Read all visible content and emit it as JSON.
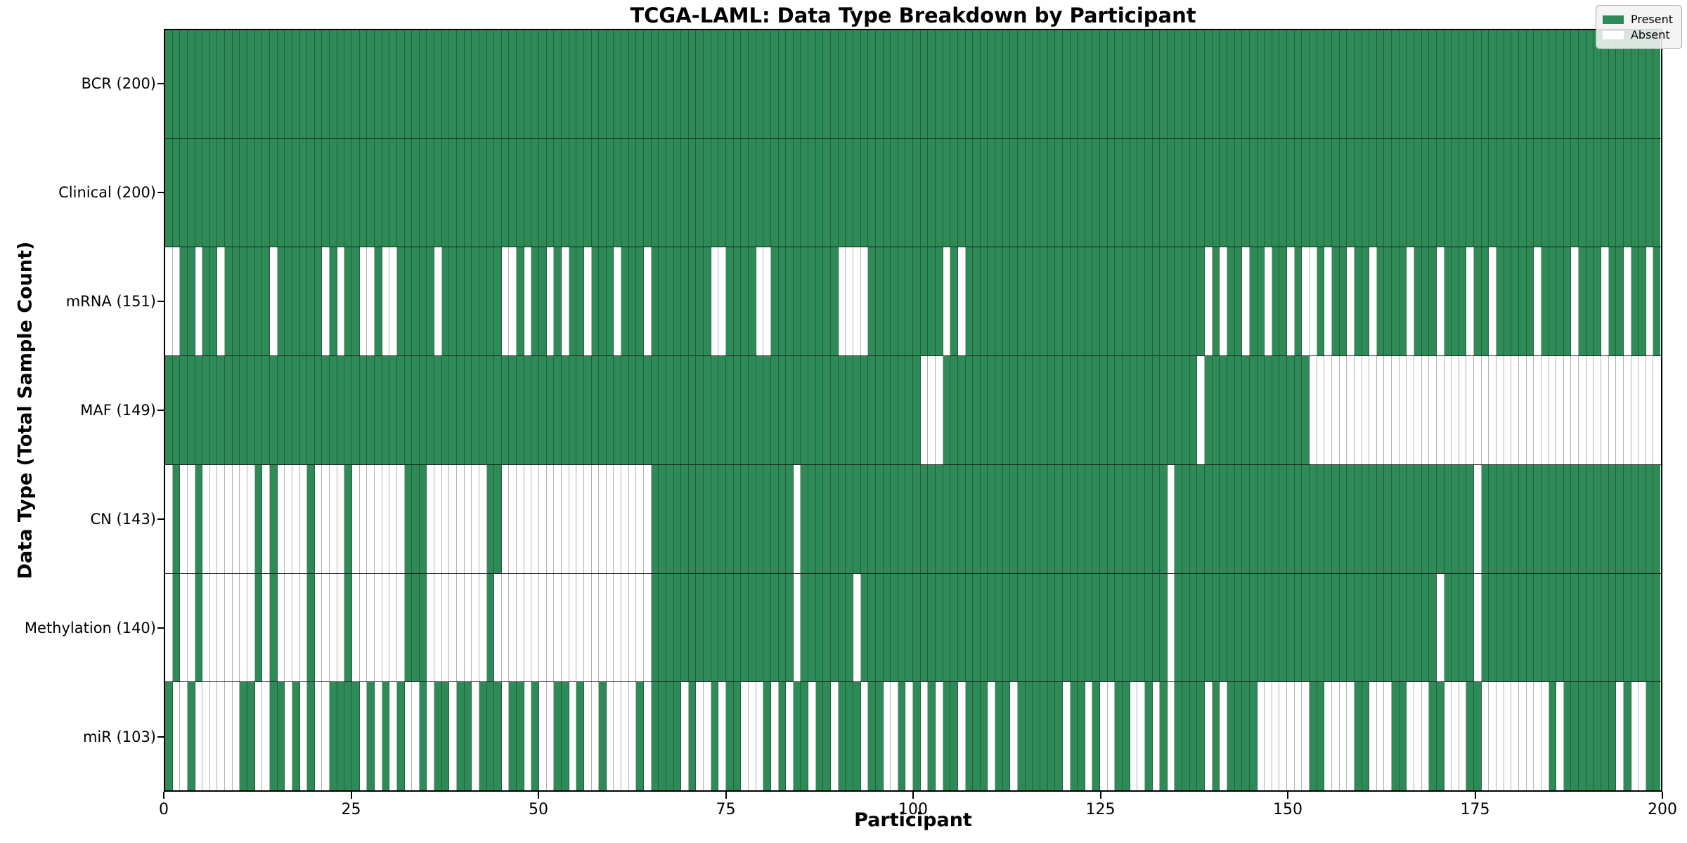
{
  "figure": {
    "title": "TCGA-LAML: Data Type Breakdown by Participant",
    "x_axis_label": "Participant",
    "y_axis_label": "Data Type (Total Sample Count)",
    "legend": {
      "present_label": "Present",
      "absent_label": "Absent"
    },
    "colors": {
      "present": "#2e8b57",
      "absent": "#ffffff",
      "cell_edge": "rgba(0,0,0,0.30)",
      "row_separator": "#1c1c1c",
      "frame": "#000000",
      "legend_bg": "rgba(242,243,242,0.88)"
    }
  },
  "chart_data": {
    "type": "heatmap",
    "title": "TCGA-LAML: Data Type Breakdown by Participant",
    "xlabel": "Participant",
    "ylabel": "Data Type (Total Sample Count)",
    "legend": [
      "Present",
      "Absent"
    ],
    "legend_position": "upper right",
    "grid": false,
    "n_participants": 200,
    "x_range": [
      0,
      200
    ],
    "x_ticks": [
      0,
      25,
      50,
      75,
      100,
      125,
      150,
      175,
      200
    ],
    "value_encoding": {
      "present": 1,
      "absent": 0
    },
    "rows": [
      {
        "name": "BCR",
        "label": "BCR (200)",
        "present_count": 200,
        "absent_count": 0,
        "absent_singles": [],
        "absent_ranges": []
      },
      {
        "name": "Clinical",
        "label": "Clinical (200)",
        "present_count": 200,
        "absent_count": 0,
        "absent_singles": [],
        "absent_ranges": []
      },
      {
        "name": "mRNA",
        "label": "mRNA (151)",
        "present_count": 151,
        "absent_count": 49,
        "absent_singles": [
          0,
          1,
          4,
          7,
          14,
          21,
          23,
          26,
          27,
          29,
          30,
          36,
          45,
          46,
          48,
          51,
          53,
          56,
          60,
          64,
          73,
          74,
          79,
          80,
          104,
          106,
          139,
          141,
          144,
          147,
          150,
          152,
          153,
          155,
          158,
          161,
          166,
          170,
          174,
          177,
          183,
          188,
          192,
          195,
          198
        ],
        "absent_ranges": [
          [
            90,
            93
          ]
        ]
      },
      {
        "name": "MAF",
        "label": "MAF (149)",
        "present_count": 149,
        "absent_count": 51,
        "absent_singles": [
          101,
          102,
          103,
          138
        ],
        "absent_ranges": [
          [
            153,
            199
          ]
        ]
      },
      {
        "name": "CN",
        "label": "CN (143)",
        "present_count": 143,
        "absent_count": 57,
        "absent_singles": [
          0,
          2,
          3,
          13,
          84,
          134,
          175
        ],
        "absent_ranges": [
          [
            5,
            11
          ],
          [
            15,
            18
          ],
          [
            20,
            23
          ],
          [
            25,
            31
          ],
          [
            35,
            42
          ],
          [
            45,
            64
          ]
        ]
      },
      {
        "name": "Methylation",
        "label": "Methylation (140)",
        "present_count": 140,
        "absent_count": 60,
        "absent_singles": [
          0,
          2,
          3,
          13,
          44,
          84,
          92,
          134,
          170,
          175
        ],
        "absent_ranges": [
          [
            5,
            11
          ],
          [
            15,
            18
          ],
          [
            20,
            23
          ],
          [
            25,
            31
          ],
          [
            35,
            42
          ],
          [
            45,
            64
          ]
        ]
      },
      {
        "name": "miR",
        "label": "miR (103)",
        "present_count": 103,
        "absent_count": 97,
        "absent_singles": [
          1,
          2,
          12,
          13,
          16,
          18,
          20,
          21,
          26,
          28,
          30,
          32,
          33,
          35,
          38,
          41,
          45,
          48,
          50,
          51,
          54,
          56,
          57,
          64,
          69,
          71,
          72,
          74,
          77,
          78,
          79,
          81,
          83,
          86,
          89,
          93,
          96,
          97,
          99,
          101,
          103,
          106,
          110,
          113,
          120,
          123,
          125,
          126,
          129,
          130,
          132,
          134,
          139,
          141,
          186,
          194,
          196,
          197
        ],
        "absent_ranges": [
          [
            4,
            9
          ],
          [
            59,
            62
          ],
          [
            146,
            152
          ],
          [
            155,
            158
          ],
          [
            161,
            163
          ],
          [
            166,
            168
          ],
          [
            171,
            173
          ],
          [
            176,
            184
          ]
        ]
      }
    ]
  }
}
